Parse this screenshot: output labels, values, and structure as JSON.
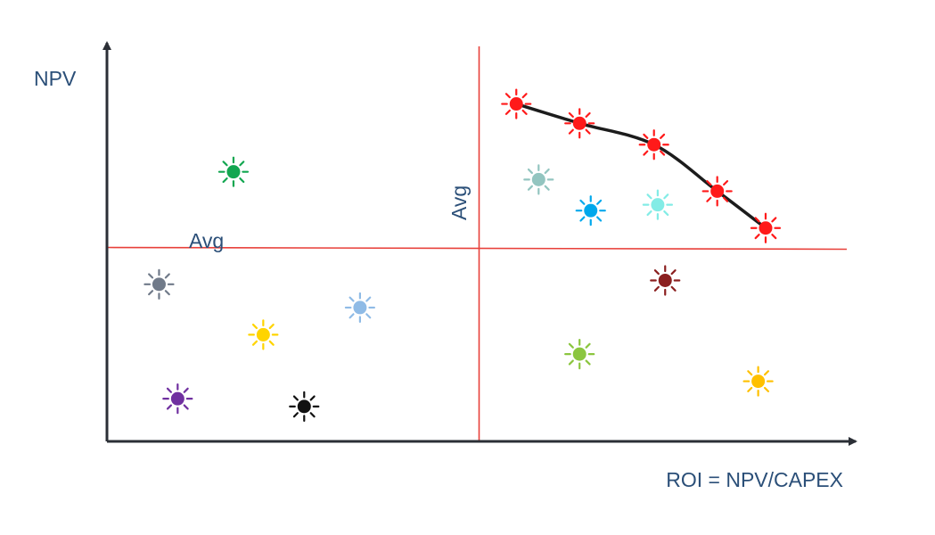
{
  "chart_data": {
    "type": "scatter",
    "title": "",
    "xlabel": "ROI = NPV/CAPEX",
    "ylabel": "NPV",
    "xlim": [
      0,
      100
    ],
    "ylim": [
      0,
      100
    ],
    "grid": false,
    "tick_labels": false,
    "avg": {
      "x": 50,
      "y": 50,
      "x_label": "Avg",
      "y_label": "Avg",
      "line_color": "#e8403a"
    },
    "axis_color": "#2b2f36",
    "frontier_color": "#1c1c1c",
    "points": [
      {
        "x": 55,
        "y": 87,
        "color": "#ff1a1a",
        "frontier": true
      },
      {
        "x": 63.5,
        "y": 82,
        "color": "#ff1a1a",
        "frontier": true
      },
      {
        "x": 73.5,
        "y": 76.5,
        "color": "#ff1a1a",
        "frontier": true
      },
      {
        "x": 82,
        "y": 64.5,
        "color": "#ff1a1a",
        "frontier": true
      },
      {
        "x": 88.5,
        "y": 55,
        "color": "#ff1a1a",
        "frontier": true
      },
      {
        "x": 17,
        "y": 69.5,
        "color": "#12a650"
      },
      {
        "x": 58,
        "y": 67.5,
        "color": "#93c5c0"
      },
      {
        "x": 65,
        "y": 59.5,
        "color": "#00a8ec"
      },
      {
        "x": 74,
        "y": 61,
        "color": "#83ece6"
      },
      {
        "x": 75,
        "y": 41.5,
        "color": "#8b1f1f"
      },
      {
        "x": 7,
        "y": 40.5,
        "color": "#707a89"
      },
      {
        "x": 34,
        "y": 34.5,
        "color": "#8fbbe6"
      },
      {
        "x": 21,
        "y": 27.5,
        "color": "#ffd400"
      },
      {
        "x": 63.5,
        "y": 22.5,
        "color": "#8bc63f"
      },
      {
        "x": 87.5,
        "y": 15.5,
        "color": "#ffc000"
      },
      {
        "x": 9.5,
        "y": 11,
        "color": "#7030a0"
      },
      {
        "x": 26.5,
        "y": 9,
        "color": "#111111"
      }
    ]
  }
}
